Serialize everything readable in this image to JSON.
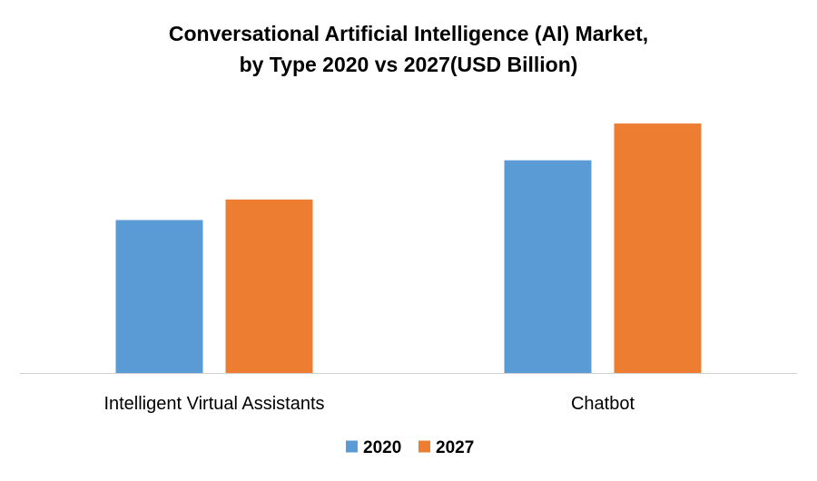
{
  "chart_data": {
    "type": "bar",
    "title_lines": [
      "Conversational Artificial  Intelligence (AI) Market,",
      "by Type 2020 vs 2027(USD Billion)"
    ],
    "categories": [
      "Intelligent Virtual Assistants",
      "Chatbot"
    ],
    "series": [
      {
        "name": "2020",
        "color": "#5b9bd5",
        "values": [
          3.2,
          4.45
        ]
      },
      {
        "name": "2027",
        "color": "#ed7d31",
        "values": [
          3.63,
          5.22
        ]
      }
    ],
    "ylim": [
      0,
      6
    ],
    "grid": false,
    "legend_position": "bottom"
  }
}
